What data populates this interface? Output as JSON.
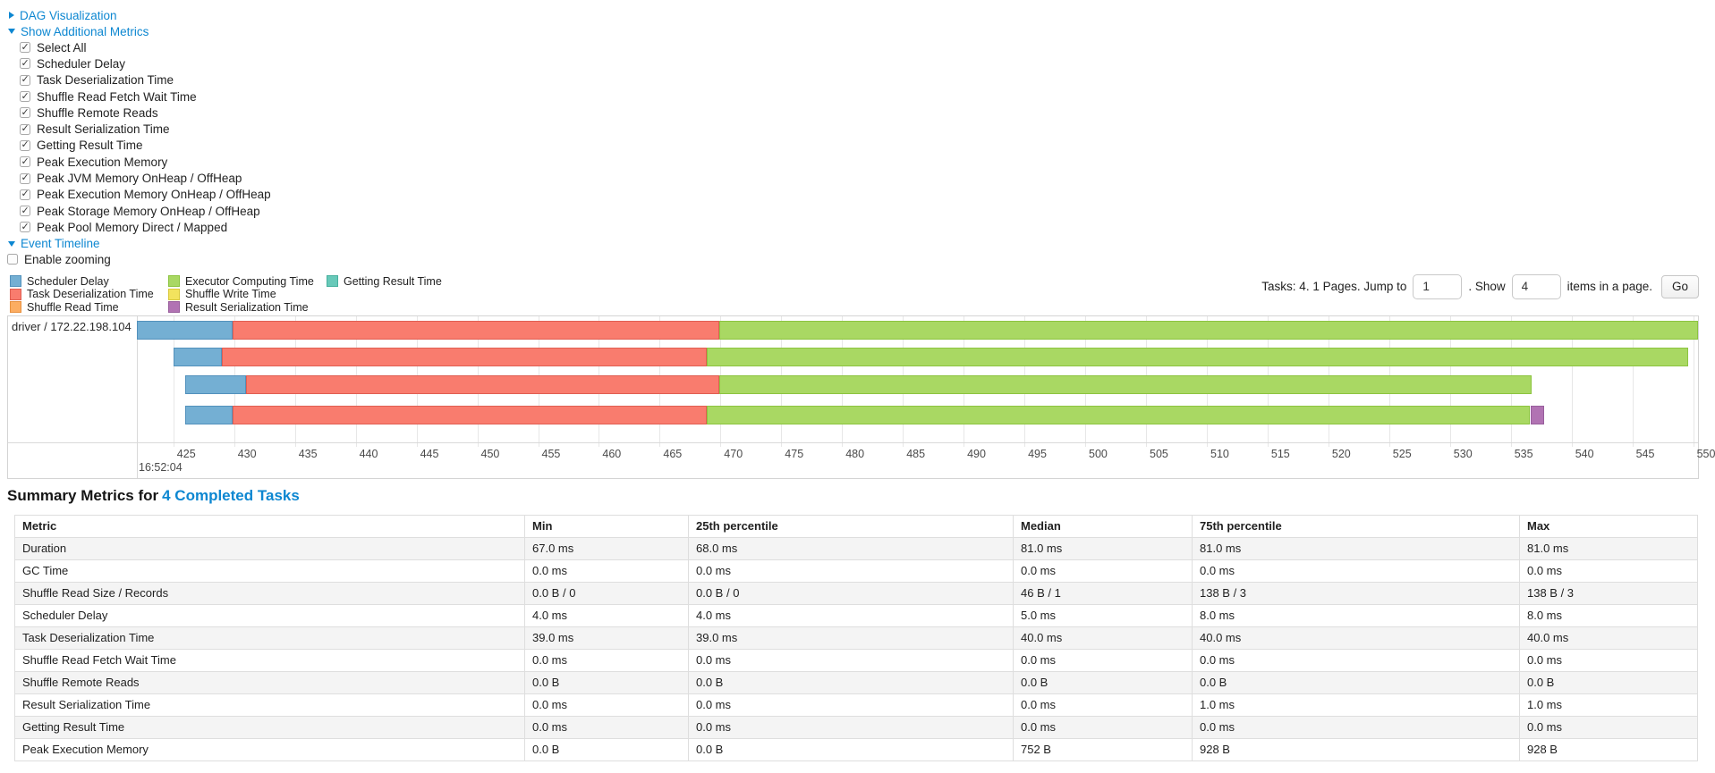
{
  "toggles": {
    "dag": "DAG Visualization",
    "metrics": "Show Additional Metrics",
    "timeline": "Event Timeline",
    "enable_zooming": {
      "label": "Enable zooming",
      "checked": false
    }
  },
  "metric_checkboxes": [
    {
      "label": "Select All",
      "checked": true
    },
    {
      "label": "Scheduler Delay",
      "checked": true
    },
    {
      "label": "Task Deserialization Time",
      "checked": true
    },
    {
      "label": "Shuffle Read Fetch Wait Time",
      "checked": true
    },
    {
      "label": "Shuffle Remote Reads",
      "checked": true
    },
    {
      "label": "Result Serialization Time",
      "checked": true
    },
    {
      "label": "Getting Result Time",
      "checked": true
    },
    {
      "label": "Peak Execution Memory",
      "checked": true
    },
    {
      "label": "Peak JVM Memory OnHeap / OffHeap",
      "checked": true
    },
    {
      "label": "Peak Execution Memory OnHeap / OffHeap",
      "checked": true
    },
    {
      "label": "Peak Storage Memory OnHeap / OffHeap",
      "checked": true
    },
    {
      "label": "Peak Pool Memory Direct / Mapped",
      "checked": true
    }
  ],
  "legend": {
    "columns": [
      [
        {
          "label": "Scheduler Delay",
          "fill": "#74AFD3",
          "border": "#5291BC"
        },
        {
          "label": "Task Deserialization Time",
          "fill": "#F97C6E",
          "border": "#E05E52"
        },
        {
          "label": "Shuffle Read Time",
          "fill": "#FCAD62",
          "border": "#E8913F"
        }
      ],
      [
        {
          "label": "Executor Computing Time",
          "fill": "#A9D863",
          "border": "#8CC43F"
        },
        {
          "label": "Shuffle Write Time",
          "fill": "#F2E35E",
          "border": "#D9C93C"
        },
        {
          "label": "Result Serialization Time",
          "fill": "#B173B3",
          "border": "#985E9C"
        }
      ],
      [
        {
          "label": "Getting Result Time",
          "fill": "#68C9B9",
          "border": "#47B09E"
        }
      ]
    ]
  },
  "pagination": {
    "prefix": "Tasks: 4. 1 Pages. Jump to",
    "jump_value": "1",
    "mid": ". Show",
    "show_value": "4",
    "suffix": "items in a page.",
    "go": "Go"
  },
  "chart_data": {
    "type": "timeline",
    "title": "Event Timeline",
    "group_label": "driver / 172.22.198.104",
    "time_axis": {
      "min": 422.0,
      "max": 550.4,
      "tick_first": 425,
      "tick_step": 5,
      "tick_last": 550,
      "start_time_label": "16:52:04"
    },
    "tasks": [
      {
        "segments": [
          {
            "series": "Scheduler Delay",
            "start": 422.0,
            "end": 429.9
          },
          {
            "series": "Task Deserialization Time",
            "start": 429.9,
            "end": 469.9
          },
          {
            "series": "Executor Computing Time",
            "start": 469.9,
            "end": 550.4
          }
        ]
      },
      {
        "segments": [
          {
            "series": "Scheduler Delay",
            "start": 425.0,
            "end": 429.0
          },
          {
            "series": "Task Deserialization Time",
            "start": 429.0,
            "end": 468.9
          },
          {
            "series": "Executor Computing Time",
            "start": 468.9,
            "end": 549.6
          }
        ]
      },
      {
        "segments": [
          {
            "series": "Scheduler Delay",
            "start": 426.0,
            "end": 431.0
          },
          {
            "series": "Task Deserialization Time",
            "start": 431.0,
            "end": 469.9
          },
          {
            "series": "Executor Computing Time",
            "start": 469.9,
            "end": 536.7
          }
        ]
      },
      {
        "segments": [
          {
            "series": "Scheduler Delay",
            "start": 426.0,
            "end": 429.9
          },
          {
            "series": "Task Deserialization Time",
            "start": 429.9,
            "end": 468.9
          },
          {
            "series": "Executor Computing Time",
            "start": 468.9,
            "end": 536.6
          },
          {
            "series": "Result Serialization Time",
            "start": 536.6,
            "end": 537.75
          }
        ]
      }
    ]
  },
  "summary": {
    "title_prefix": "Summary Metrics for",
    "title_link": "4 Completed Tasks",
    "headers": [
      "Metric",
      "Min",
      "25th percentile",
      "Median",
      "75th percentile",
      "Max"
    ],
    "rows": [
      [
        "Duration",
        "67.0 ms",
        "68.0 ms",
        "81.0 ms",
        "81.0 ms",
        "81.0 ms"
      ],
      [
        "GC Time",
        "0.0 ms",
        "0.0 ms",
        "0.0 ms",
        "0.0 ms",
        "0.0 ms"
      ],
      [
        "Shuffle Read Size / Records",
        "0.0 B / 0",
        "0.0 B / 0",
        "46 B / 1",
        "138 B / 3",
        "138 B / 3"
      ],
      [
        "Scheduler Delay",
        "4.0 ms",
        "4.0 ms",
        "5.0 ms",
        "8.0 ms",
        "8.0 ms"
      ],
      [
        "Task Deserialization Time",
        "39.0 ms",
        "39.0 ms",
        "40.0 ms",
        "40.0 ms",
        "40.0 ms"
      ],
      [
        "Shuffle Read Fetch Wait Time",
        "0.0 ms",
        "0.0 ms",
        "0.0 ms",
        "0.0 ms",
        "0.0 ms"
      ],
      [
        "Shuffle Remote Reads",
        "0.0 B",
        "0.0 B",
        "0.0 B",
        "0.0 B",
        "0.0 B"
      ],
      [
        "Result Serialization Time",
        "0.0 ms",
        "0.0 ms",
        "0.0 ms",
        "1.0 ms",
        "1.0 ms"
      ],
      [
        "Getting Result Time",
        "0.0 ms",
        "0.0 ms",
        "0.0 ms",
        "0.0 ms",
        "0.0 ms"
      ],
      [
        "Peak Execution Memory",
        "0.0 B",
        "0.0 B",
        "752 B",
        "928 B",
        "928 B"
      ]
    ]
  }
}
